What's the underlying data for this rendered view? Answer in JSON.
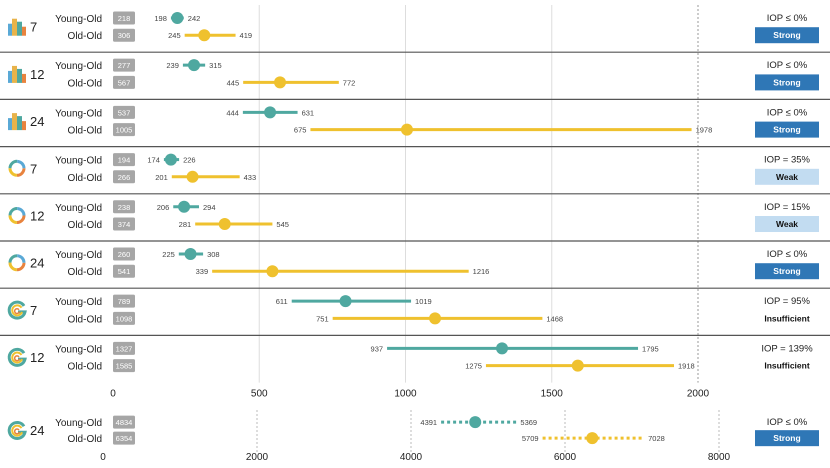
{
  "colors": {
    "young": "#4fa8a0",
    "old": "#efc12e",
    "strong": "#2f77b6",
    "weak": "#c2dcf1",
    "badge": "#a6a6a6",
    "grid": "#dddddd",
    "separator": "#555555"
  },
  "chart_data": [
    {
      "type": "interval",
      "title": "",
      "xlim": [
        0,
        2000
      ],
      "xticks": [
        0,
        500,
        1000,
        1500,
        2000
      ],
      "xlabel": "",
      "reference_line": 2000,
      "rows": [
        {
          "icon": "bar-chart-icon",
          "group": "7",
          "young": {
            "label": "Young-Old",
            "n": "218",
            "lo": 198,
            "hi": 242,
            "point": 220
          },
          "old": {
            "label": "Old-Old",
            "n": "306",
            "lo": 245,
            "hi": 419,
            "point": 312
          },
          "iop": "IOP ≤ 0%",
          "rating": "Strong",
          "rating_style": "strong"
        },
        {
          "icon": "bar-chart-icon",
          "group": "12",
          "young": {
            "label": "Young-Old",
            "n": "277",
            "lo": 239,
            "hi": 315,
            "point": 277
          },
          "old": {
            "label": "Old-Old",
            "n": "567",
            "lo": 445,
            "hi": 772,
            "point": 571
          },
          "iop": "IOP ≤ 0%",
          "rating": "Strong",
          "rating_style": "strong"
        },
        {
          "icon": "bar-chart-icon",
          "group": "24",
          "young": {
            "label": "Young-Old",
            "n": "537",
            "lo": 444,
            "hi": 631,
            "point": 537
          },
          "old": {
            "label": "Old-Old",
            "n": "1005",
            "lo": 675,
            "hi": 1978,
            "point": 1005
          },
          "iop": "IOP ≤ 0%",
          "rating": "Strong",
          "rating_style": "strong"
        },
        {
          "icon": "ring-icon",
          "group": "7",
          "young": {
            "label": "Young-Old",
            "n": "194",
            "lo": 174,
            "hi": 226,
            "point": 198
          },
          "old": {
            "label": "Old-Old",
            "n": "266",
            "lo": 201,
            "hi": 433,
            "point": 272
          },
          "iop": "IOP = 35%",
          "rating": "Weak",
          "rating_style": "weak"
        },
        {
          "icon": "ring-icon",
          "group": "12",
          "young": {
            "label": "Young-Old",
            "n": "238",
            "lo": 206,
            "hi": 294,
            "point": 243
          },
          "old": {
            "label": "Old-Old",
            "n": "374",
            "lo": 281,
            "hi": 545,
            "point": 382
          },
          "iop": "IOP = 15%",
          "rating": "Weak",
          "rating_style": "weak"
        },
        {
          "icon": "ring-icon",
          "group": "24",
          "young": {
            "label": "Young-Old",
            "n": "260",
            "lo": 225,
            "hi": 308,
            "point": 265
          },
          "old": {
            "label": "Old-Old",
            "n": "541",
            "lo": 339,
            "hi": 1216,
            "point": 545
          },
          "iop": "IOP ≤ 0%",
          "rating": "Strong",
          "rating_style": "strong"
        },
        {
          "icon": "g-logo-icon",
          "group": "7",
          "young": {
            "label": "Young-Old",
            "n": "789",
            "lo": 611,
            "hi": 1019,
            "point": 795
          },
          "old": {
            "label": "Old-Old",
            "n": "1098",
            "lo": 751,
            "hi": 1468,
            "point": 1101
          },
          "iop": "IOP = 95%",
          "rating": "Insufficient",
          "rating_style": "text"
        },
        {
          "icon": "g-logo-icon",
          "group": "12",
          "young": {
            "label": "Young-Old",
            "n": "1327",
            "lo": 937,
            "hi": 1795,
            "point": 1330
          },
          "old": {
            "label": "Old-Old",
            "n": "1585",
            "lo": 1275,
            "hi": 1918,
            "point": 1589
          },
          "iop": "IOP = 139%",
          "rating": "Insufficient",
          "rating_style": "text"
        }
      ]
    },
    {
      "type": "interval",
      "title": "",
      "xlim": [
        0,
        9000
      ],
      "xticks": [
        0,
        2000,
        4000,
        6000,
        8000
      ],
      "xlabel": "",
      "line_style": "dotted",
      "rows": [
        {
          "icon": "g-logo-icon",
          "group": "24",
          "young": {
            "label": "Young-Old",
            "n": "4834",
            "lo": 4391,
            "hi": 5369,
            "point": 4834
          },
          "old": {
            "label": "Old-Old",
            "n": "6354",
            "lo": 5709,
            "hi": 7028,
            "point": 6354
          },
          "iop": "IOP ≤ 0%",
          "rating": "Strong",
          "rating_style": "strong"
        }
      ]
    }
  ]
}
